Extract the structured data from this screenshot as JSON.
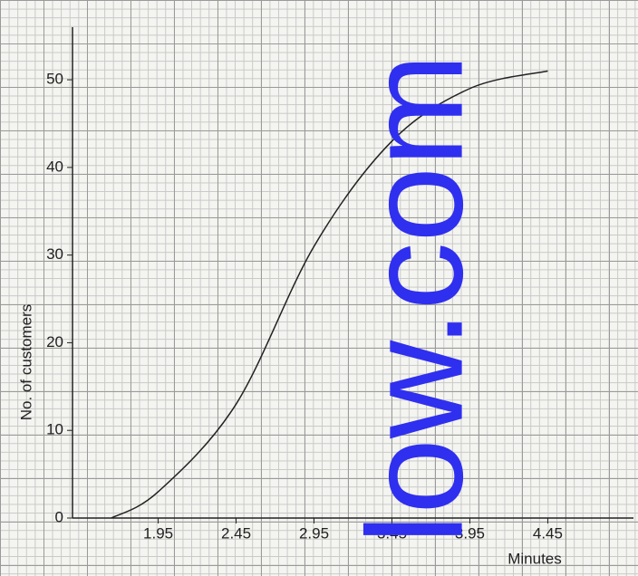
{
  "chart_data": {
    "type": "line",
    "x_label": "Minutes",
    "y_label": "No. of customers",
    "x": [
      1.65,
      1.95,
      2.45,
      2.95,
      3.45,
      3.95,
      4.45
    ],
    "values": [
      0,
      3,
      13,
      31,
      43,
      49,
      51
    ],
    "color": "#222222",
    "xlim": [
      1.4,
      5.0
    ],
    "xticks": [
      1.95,
      2.45,
      2.95,
      3.45,
      3.95,
      4.45
    ],
    "ylim": [
      0,
      56
    ],
    "yticks": [
      0,
      10,
      20,
      30,
      40,
      50
    ],
    "watermark": "low.com",
    "watermark_color": "#2f2ff0"
  }
}
